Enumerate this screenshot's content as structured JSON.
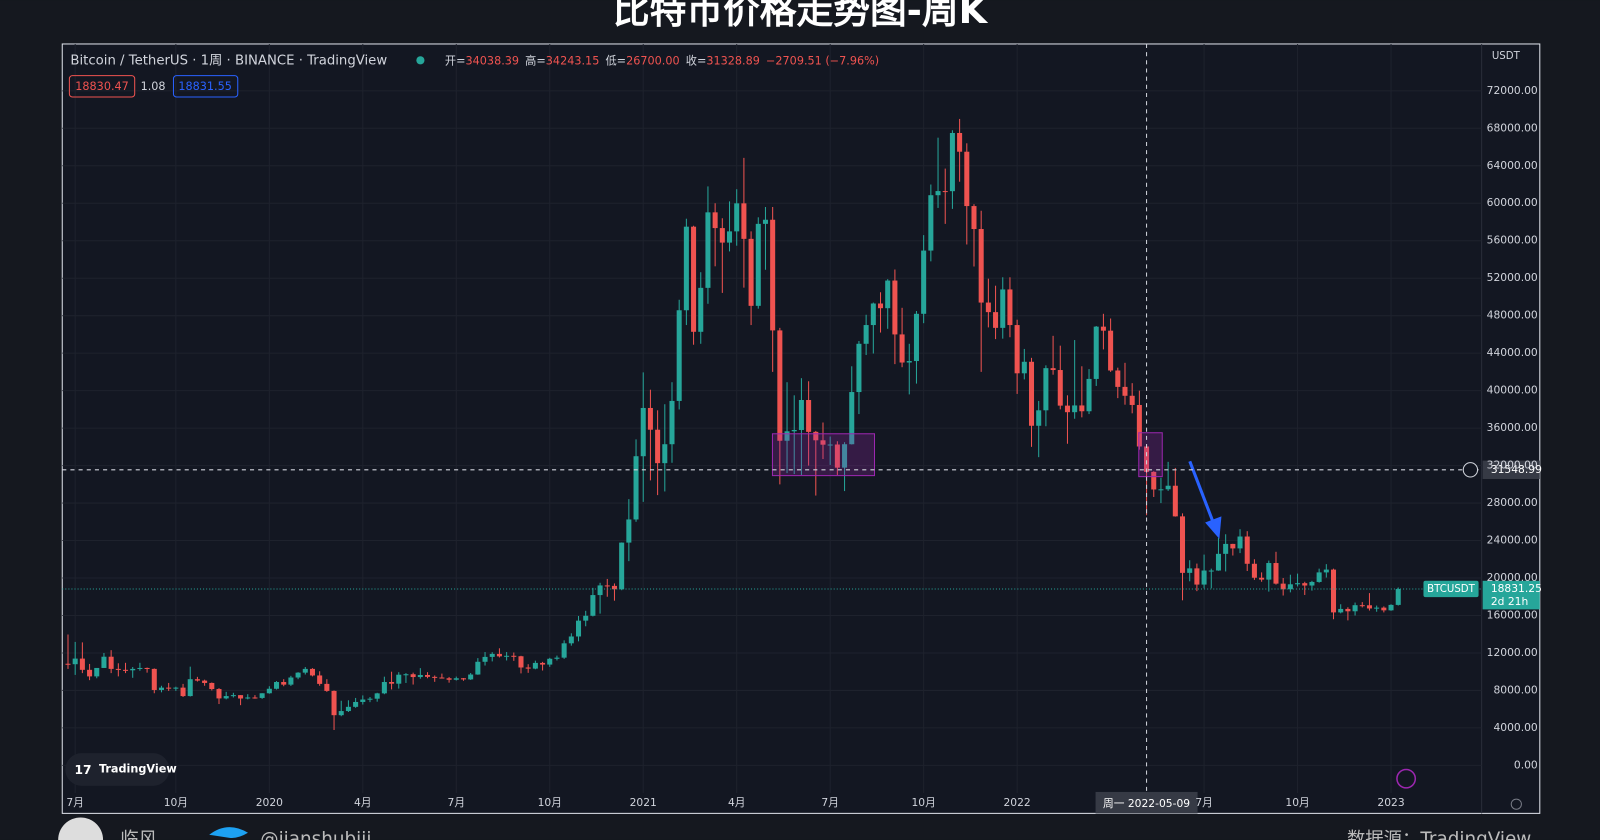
{
  "header": {
    "title": "比特币价格走势图-周K"
  },
  "toolbar": {
    "symbol": "Bitcoin / TetherUS · 1周 · BINANCE · TradingView",
    "legend": [
      {
        "label": "开=",
        "value": "34038.39"
      },
      {
        "label": "高=",
        "value": "34243.15"
      },
      {
        "label": "低=",
        "value": "26700.00"
      },
      {
        "label": "收=",
        "value": "31328.89"
      }
    ],
    "change": "−2709.51 (−7.96%)",
    "bid": "18830.47",
    "spread": "1.08",
    "ask": "18831.55",
    "currency": "USDT"
  },
  "chart_data": {
    "type": "candlestick",
    "up_color": "#26a69a",
    "down_color": "#ef5350",
    "grid": true,
    "xlim": [
      -0.8,
      196.6
    ],
    "ylim": [
      -5120,
      77000
    ],
    "xticks": [
      {
        "value": 1,
        "label": "7月"
      },
      {
        "value": 15,
        "label": "10月"
      },
      {
        "value": 28,
        "label": "2020"
      },
      {
        "value": 41,
        "label": "4月"
      },
      {
        "value": 54,
        "label": "7月"
      },
      {
        "value": 67,
        "label": "10月"
      },
      {
        "value": 80,
        "label": "2021"
      },
      {
        "value": 93,
        "label": "4月"
      },
      {
        "value": 106,
        "label": "7月"
      },
      {
        "value": 119,
        "label": "10月"
      },
      {
        "value": 132,
        "label": "2022"
      },
      {
        "value": 158,
        "label": "7月"
      },
      {
        "value": 171,
        "label": "10月"
      },
      {
        "value": 184,
        "label": "2023"
      }
    ],
    "yticks": [
      {
        "value": 0,
        "label": "0.00"
      },
      {
        "value": 4000,
        "label": "4000.00"
      },
      {
        "value": 8000,
        "label": "8000.00"
      },
      {
        "value": 12000,
        "label": "12000.00"
      },
      {
        "value": 16000,
        "label": "16000.00"
      },
      {
        "value": 20000,
        "label": "20000.00"
      },
      {
        "value": 24000,
        "label": "24000.00"
      },
      {
        "value": 28000,
        "label": "28000.00"
      },
      {
        "value": 32000,
        "label": "32000.00"
      },
      {
        "value": 36000,
        "label": "36000.00"
      },
      {
        "value": 40000,
        "label": "40000.00"
      },
      {
        "value": 44000,
        "label": "44000.00"
      },
      {
        "value": 48000,
        "label": "48000.00"
      },
      {
        "value": 52000,
        "label": "52000.00"
      },
      {
        "value": 56000,
        "label": "56000.00"
      },
      {
        "value": 60000,
        "label": "60000.00"
      },
      {
        "value": 64000,
        "label": "64000.00"
      },
      {
        "value": 68000,
        "label": "68000.00"
      },
      {
        "value": 72000,
        "label": "72000.00"
      }
    ],
    "ohlc": [
      [
        10850,
        13970,
        10300,
        10800
      ],
      [
        10800,
        13180,
        9660,
        11400
      ],
      [
        11400,
        13130,
        9850,
        10200
      ],
      [
        10200,
        10830,
        9100,
        9500
      ],
      [
        9500,
        10200,
        9300,
        10400
      ],
      [
        10400,
        12000,
        10400,
        11600
      ],
      [
        11600,
        12300,
        9850,
        10300
      ],
      [
        10300,
        10900,
        9500,
        10200
      ],
      [
        10200,
        10950,
        9850,
        10150
      ],
      [
        10150,
        10500,
        9350,
        10300
      ],
      [
        10300,
        10950,
        10100,
        10400
      ],
      [
        10400,
        10450,
        9900,
        10300
      ],
      [
        10300,
        10350,
        7700,
        8050
      ],
      [
        8050,
        8500,
        7800,
        8300
      ],
      [
        8300,
        8800,
        7950,
        8250
      ],
      [
        8250,
        8400,
        7950,
        8300
      ],
      [
        8300,
        8700,
        7300,
        7400
      ],
      [
        7400,
        10540,
        7350,
        9200
      ],
      [
        9200,
        9450,
        8950,
        9050
      ],
      [
        9050,
        9150,
        8500,
        8800
      ],
      [
        8800,
        8850,
        8000,
        8150
      ],
      [
        8150,
        8250,
        6550,
        7150
      ],
      [
        7150,
        7850,
        7050,
        7400
      ],
      [
        7400,
        7750,
        7250,
        7500
      ],
      [
        7500,
        7500,
        6430,
        7140
      ],
      [
        7140,
        7600,
        7050,
        7250
      ],
      [
        7250,
        7500,
        7120,
        7200
      ],
      [
        7200,
        7700,
        7100,
        7700
      ],
      [
        7700,
        8450,
        7650,
        8180
      ],
      [
        8180,
        9000,
        8100,
        8900
      ],
      [
        8900,
        9200,
        8450,
        8620
      ],
      [
        8620,
        9560,
        8480,
        9380
      ],
      [
        9380,
        9950,
        9200,
        9900
      ],
      [
        9900,
        10500,
        9700,
        10300
      ],
      [
        10300,
        10380,
        9500,
        9600
      ],
      [
        9600,
        10050,
        8500,
        8700
      ],
      [
        8700,
        9200,
        7850,
        7950
      ],
      [
        7950,
        8000,
        3780,
        5360
      ],
      [
        5360,
        6900,
        5250,
        5800
      ],
      [
        5800,
        6950,
        5700,
        6250
      ],
      [
        6250,
        7200,
        6150,
        6770
      ],
      [
        6770,
        7470,
        6500,
        7030
      ],
      [
        7030,
        7300,
        6750,
        7120
      ],
      [
        7120,
        7750,
        6800,
        7690
      ],
      [
        7690,
        9470,
        7600,
        8900
      ],
      [
        8900,
        10000,
        8110,
        8720
      ],
      [
        8720,
        9950,
        8200,
        9680
      ],
      [
        9680,
        9850,
        8800,
        9730
      ],
      [
        9730,
        9900,
        8630,
        9430
      ],
      [
        9430,
        10380,
        9250,
        9650
      ],
      [
        9650,
        9950,
        9300,
        9450
      ],
      [
        9450,
        9600,
        8920,
        9380
      ],
      [
        9380,
        9800,
        9300,
        9300
      ],
      [
        9300,
        9440,
        8830,
        9140
      ],
      [
        9140,
        9480,
        9060,
        9300
      ],
      [
        9300,
        9330,
        9030,
        9180
      ],
      [
        9180,
        9860,
        9120,
        9700
      ],
      [
        9700,
        11450,
        9670,
        11060
      ],
      [
        11060,
        12100,
        10660,
        11580
      ],
      [
        11580,
        12080,
        11100,
        11900
      ],
      [
        11900,
        12500,
        11520,
        11640
      ],
      [
        11640,
        12100,
        11200,
        11700
      ],
      [
        11700,
        12050,
        11160,
        11650
      ],
      [
        11650,
        11700,
        9820,
        10450
      ],
      [
        10450,
        10800,
        9880,
        10330
      ],
      [
        10330,
        11180,
        10260,
        10940
      ],
      [
        10940,
        11050,
        10130,
        10760
      ],
      [
        10760,
        11480,
        10520,
        11380
      ],
      [
        11380,
        11720,
        11200,
        11500
      ],
      [
        11500,
        13350,
        11370,
        13030
      ],
      [
        13030,
        14100,
        12780,
        13760
      ],
      [
        13760,
        15950,
        13240,
        15450
      ],
      [
        15450,
        16500,
        14850,
        15970
      ],
      [
        15970,
        18950,
        15900,
        18180
      ],
      [
        18180,
        19490,
        16200,
        19210
      ],
      [
        19210,
        19900,
        18000,
        19160
      ],
      [
        19160,
        19420,
        17580,
        18800
      ],
      [
        18800,
        23800,
        18700,
        23780
      ],
      [
        23780,
        28420,
        21800,
        26250
      ],
      [
        26250,
        34800,
        26000,
        33000
      ],
      [
        33000,
        41950,
        28130,
        38150
      ],
      [
        38150,
        40100,
        30420,
        35830
      ],
      [
        35830,
        37900,
        28850,
        32260
      ],
      [
        32260,
        38550,
        29240,
        34280
      ],
      [
        34280,
        40900,
        32300,
        38900
      ],
      [
        38900,
        49700,
        37990,
        48580
      ],
      [
        48580,
        58350,
        47000,
        57500
      ],
      [
        57500,
        57600,
        44900,
        46280
      ],
      [
        46280,
        52640,
        45000,
        50970
      ],
      [
        50970,
        61800,
        49270,
        59030
      ],
      [
        59030,
        60000,
        53270,
        57350
      ],
      [
        57350,
        58400,
        50430,
        55800
      ],
      [
        55800,
        60200,
        54860,
        57000
      ],
      [
        57000,
        61500,
        55470,
        59990
      ],
      [
        59990,
        64850,
        51000,
        56200
      ],
      [
        56200,
        57000,
        47000,
        49050
      ],
      [
        49050,
        58500,
        48750,
        57800
      ],
      [
        57800,
        59600,
        52900,
        58240
      ],
      [
        58240,
        59600,
        42000,
        46430
      ],
      [
        46430,
        46700,
        30000,
        34650
      ],
      [
        34650,
        40900,
        31200,
        35660
      ],
      [
        35660,
        39500,
        31100,
        35800
      ],
      [
        35800,
        41330,
        31000,
        39000
      ],
      [
        39000,
        41000,
        32000,
        35600
      ],
      [
        35600,
        35700,
        28800,
        34700
      ],
      [
        34700,
        36600,
        32700,
        34230
      ],
      [
        34230,
        35100,
        32070,
        34250
      ],
      [
        34250,
        34600,
        31000,
        31780
      ],
      [
        31780,
        34500,
        29280,
        34280
      ],
      [
        34280,
        42600,
        34250,
        39850
      ],
      [
        39850,
        45300,
        37500,
        45000
      ],
      [
        45000,
        48100,
        43800,
        47000
      ],
      [
        47000,
        49400,
        43960,
        49300
      ],
      [
        49300,
        50500,
        46200,
        48800
      ],
      [
        48800,
        51900,
        46600,
        51750
      ],
      [
        51750,
        52930,
        42830,
        46000
      ],
      [
        46000,
        48840,
        42500,
        43000
      ],
      [
        43000,
        45000,
        39600,
        43160
      ],
      [
        43160,
        48500,
        40750,
        48200
      ],
      [
        48200,
        56600,
        47200,
        54950
      ],
      [
        54950,
        62000,
        53800,
        60860
      ],
      [
        60860,
        67000,
        59500,
        61300
      ],
      [
        61300,
        63700,
        57800,
        61290
      ],
      [
        61290,
        67790,
        59400,
        67500
      ],
      [
        67500,
        69000,
        62300,
        65500
      ],
      [
        65500,
        66400,
        55600,
        59700
      ],
      [
        59700,
        59900,
        53250,
        57250
      ],
      [
        57250,
        59200,
        42000,
        49400
      ],
      [
        49400,
        51950,
        46750,
        48380
      ],
      [
        48380,
        51200,
        45500,
        46700
      ],
      [
        46700,
        52100,
        45550,
        50800
      ],
      [
        50800,
        52100,
        45700,
        47000
      ],
      [
        47000,
        47570,
        39650,
        41850
      ],
      [
        41850,
        44450,
        41200,
        43080
      ],
      [
        43080,
        43500,
        34000,
        36250
      ],
      [
        36250,
        38900,
        32900,
        37900
      ],
      [
        37900,
        42700,
        36200,
        42400
      ],
      [
        42400,
        45850,
        41700,
        42200
      ],
      [
        42200,
        44800,
        38000,
        38400
      ],
      [
        38400,
        39500,
        34330,
        37700
      ],
      [
        37700,
        45400,
        37000,
        38420
      ],
      [
        38420,
        42600,
        37150,
        37800
      ],
      [
        37800,
        42300,
        37500,
        41250
      ],
      [
        41250,
        46900,
        40500,
        46830
      ],
      [
        46830,
        48200,
        44400,
        46400
      ],
      [
        46400,
        47700,
        42000,
        42150
      ],
      [
        42150,
        42450,
        39200,
        40400
      ],
      [
        40400,
        42970,
        38500,
        39450
      ],
      [
        39450,
        40800,
        37580,
        38470
      ],
      [
        38470,
        40000,
        33700,
        34038.4
      ],
      [
        34038.39,
        34243.15,
        26700,
        31328.89
      ],
      [
        31330,
        31400,
        28650,
        29450
      ],
      [
        29450,
        30700,
        28000,
        29470
      ],
      [
        29470,
        32400,
        29300,
        29850
      ],
      [
        29850,
        31750,
        26550,
        26580
      ],
      [
        26580,
        26900,
        17620,
        20550
      ],
      [
        20550,
        21900,
        19650,
        21030
      ],
      [
        21030,
        21540,
        18600,
        19300
      ],
      [
        19300,
        22500,
        18900,
        20800
      ],
      [
        20800,
        21000,
        18900,
        20800
      ],
      [
        20800,
        24280,
        20770,
        22580
      ],
      [
        22580,
        24670,
        20700,
        23640
      ],
      [
        23640,
        23650,
        22400,
        23160
      ],
      [
        23160,
        25210,
        22660,
        24430
      ],
      [
        24430,
        25000,
        20750,
        21520
      ],
      [
        21520,
        22000,
        19800,
        20030
      ],
      [
        20030,
        20600,
        19600,
        19830
      ],
      [
        19830,
        21860,
        18550,
        21600
      ],
      [
        21600,
        22800,
        19300,
        19400
      ],
      [
        19400,
        20000,
        18130,
        18800
      ],
      [
        18800,
        20350,
        18470,
        19330
      ],
      [
        19330,
        20470,
        19100,
        19450
      ],
      [
        19450,
        19600,
        18190,
        19200
      ],
      [
        19200,
        19700,
        18650,
        19580
      ],
      [
        19580,
        21000,
        19500,
        20600
      ],
      [
        20600,
        21480,
        20050,
        20900
      ],
      [
        20900,
        21000,
        15600,
        16330
      ],
      [
        16330,
        17200,
        16230,
        16700
      ],
      [
        16700,
        16880,
        15480,
        16450
      ],
      [
        16450,
        17380,
        16000,
        17100
      ],
      [
        17100,
        17430,
        16860,
        17090
      ],
      [
        17090,
        18390,
        16530,
        16750
      ],
      [
        16750,
        17060,
        16400,
        16840
      ],
      [
        16840,
        16970,
        16330,
        16550
      ],
      [
        16550,
        17200,
        16500,
        17130
      ],
      [
        17130,
        18990,
        17060,
        18831.25
      ]
    ],
    "last_price": 18831.25,
    "last_price_symbol": "BTCUSDT",
    "countdown": "2d 21h",
    "crosshair": {
      "index": 150,
      "date": "周一 2022-05-09",
      "price": 31548.99
    }
  },
  "footer": {
    "logo": "TradingView",
    "author": "临风",
    "handle": "@jianshubiji",
    "source": "数据源：TradingView"
  }
}
